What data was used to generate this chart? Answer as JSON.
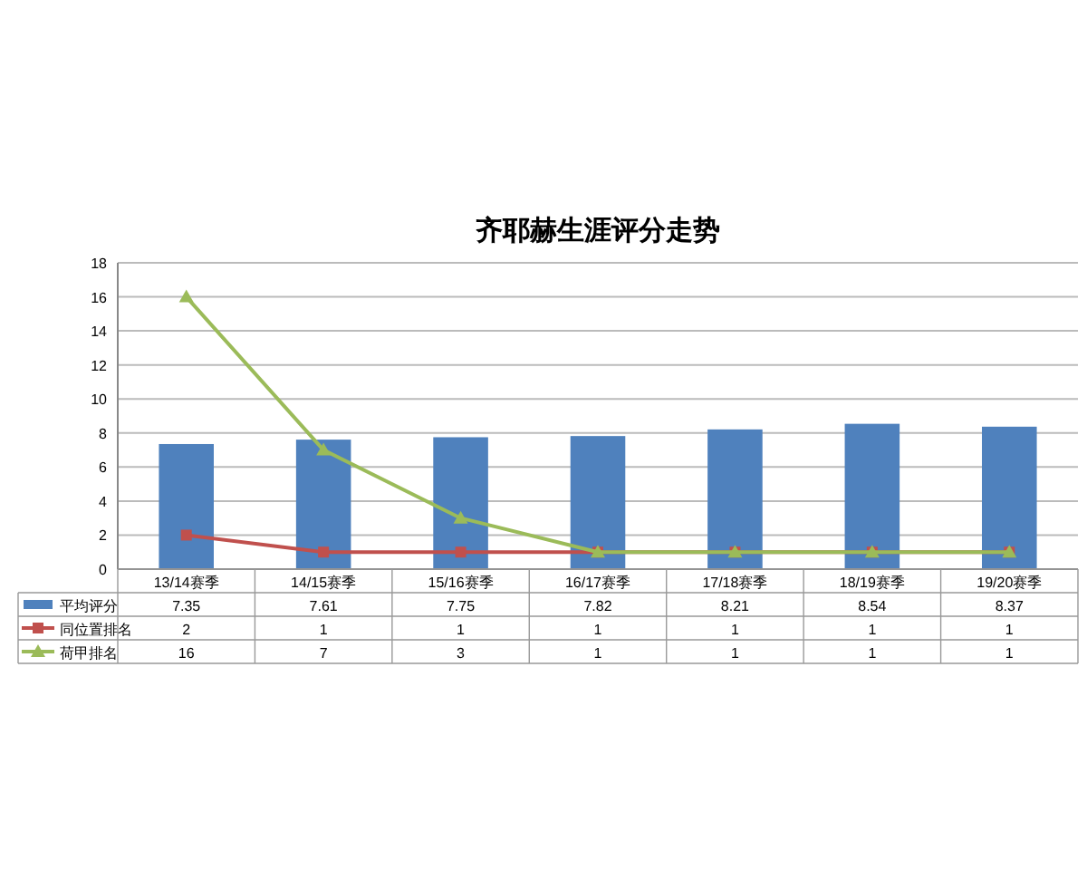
{
  "chart_data": {
    "type": "bar",
    "title": "齐耶赫生涯评分走势",
    "categories": [
      "13/14赛季",
      "14/15赛季",
      "15/16赛季",
      "16/17赛季",
      "17/18赛季",
      "18/19赛季",
      "19/20赛季"
    ],
    "series": [
      {
        "name": "平均评分",
        "color": "#4f81bd",
        "values": [
          7.35,
          7.61,
          7.75,
          7.82,
          8.21,
          8.54,
          8.37
        ]
      },
      {
        "name": "同位置排名",
        "type": "line",
        "color": "#c0504d",
        "marker": "square",
        "values": [
          2,
          1,
          1,
          1,
          1,
          1,
          1
        ]
      },
      {
        "name": "荷甲排名",
        "type": "line",
        "color": "#9bbb59",
        "marker": "triangle",
        "values": [
          16,
          7,
          3,
          1,
          1,
          1,
          1
        ]
      }
    ],
    "ylim": [
      0,
      18
    ],
    "yticks": [
      0,
      2,
      4,
      6,
      8,
      10,
      12,
      14,
      16,
      18
    ],
    "grid": "y",
    "legend": "bottom",
    "data_labels": true
  }
}
